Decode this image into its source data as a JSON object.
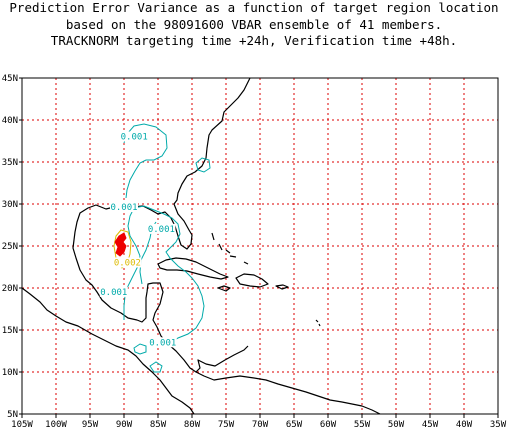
{
  "title": {
    "line1": "Prediction Error Variance as a function of target region location",
    "line2": "based on the 98091600 VBAR ensemble of 41 members.",
    "line3": "TRACKNORM targeting time +24h, Verification time +48h."
  },
  "map": {
    "lon_range": [
      -105,
      -35
    ],
    "lat_range": [
      5,
      45
    ],
    "grid_color": "#dd0000",
    "x_ticks": [
      "105W",
      "100W",
      "95W",
      "90W",
      "85W",
      "80W",
      "75W",
      "70W",
      "65W",
      "60W",
      "55W",
      "50W",
      "45W",
      "40W",
      "35W"
    ],
    "y_ticks": [
      "5N",
      "10N",
      "15N",
      "20N",
      "25N",
      "30N",
      "35N",
      "40N",
      "45N"
    ]
  },
  "contours": {
    "cyan_color": "#00aaaa",
    "yellow_color": "#ddbb00",
    "red_color": "#ee0000",
    "labels": [
      {
        "text": "0.001",
        "lon": -88.5,
        "lat": 37.8,
        "color": "cyan"
      },
      {
        "text": "0.001",
        "lon": -90.0,
        "lat": 29.4,
        "color": "cyan"
      },
      {
        "text": "0.001",
        "lon": -84.5,
        "lat": 26.8,
        "color": "cyan"
      },
      {
        "text": "0.002",
        "lon": -89.5,
        "lat": 22.8,
        "color": "yellow"
      },
      {
        "text": "0.001",
        "lon": -91.5,
        "lat": 19.3,
        "color": "cyan"
      },
      {
        "text": "0.001",
        "lon": -84.3,
        "lat": 13.3,
        "color": "cyan"
      }
    ]
  }
}
